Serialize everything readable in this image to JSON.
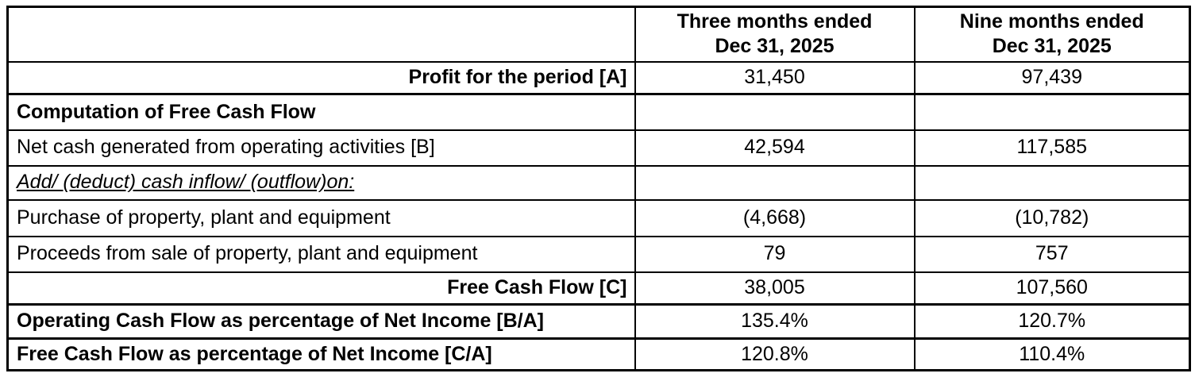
{
  "colors": {
    "background": "#ffffff",
    "border": "#000000",
    "text": "#000000"
  },
  "table": {
    "header": {
      "corner": "",
      "cols": [
        {
          "line1": "Three months ended",
          "line2": "Dec 31, 2025"
        },
        {
          "line1": "Nine months ended",
          "line2": "Dec 31, 2025"
        }
      ]
    },
    "rows": [
      {
        "label": "Profit for the period [A]",
        "style": "bold-right",
        "three_months": "31,450",
        "nine_months": "97,439"
      },
      {
        "label": "Computation of Free Cash Flow",
        "style": "bold-left",
        "three_months": "",
        "nine_months": ""
      },
      {
        "label": "Net cash generated from operating activities [B]",
        "style": "normal",
        "three_months": "42,594",
        "nine_months": "117,585"
      },
      {
        "label": "Add/ (deduct) cash inflow/ (outflow)on:",
        "style": "italic-underline",
        "three_months": "",
        "nine_months": ""
      },
      {
        "label": "Purchase of property, plant and equipment",
        "style": "normal",
        "three_months": "(4,668)",
        "nine_months": "(10,782)"
      },
      {
        "label": "Proceeds from sale of property, plant and equipment",
        "style": "normal",
        "three_months": "79",
        "nine_months": "757"
      },
      {
        "label": "Free Cash Flow [C]",
        "style": "bold-right",
        "three_months": "38,005",
        "nine_months": "107,560"
      },
      {
        "label": "Operating Cash Flow as percentage of Net Income [B/A]",
        "style": "bold-left",
        "three_months": "135.4%",
        "nine_months": "120.7%"
      },
      {
        "label": "Free Cash Flow as percentage of Net Income [C/A]",
        "style": "bold-left",
        "three_months": "120.8%",
        "nine_months": "110.4%"
      }
    ]
  }
}
